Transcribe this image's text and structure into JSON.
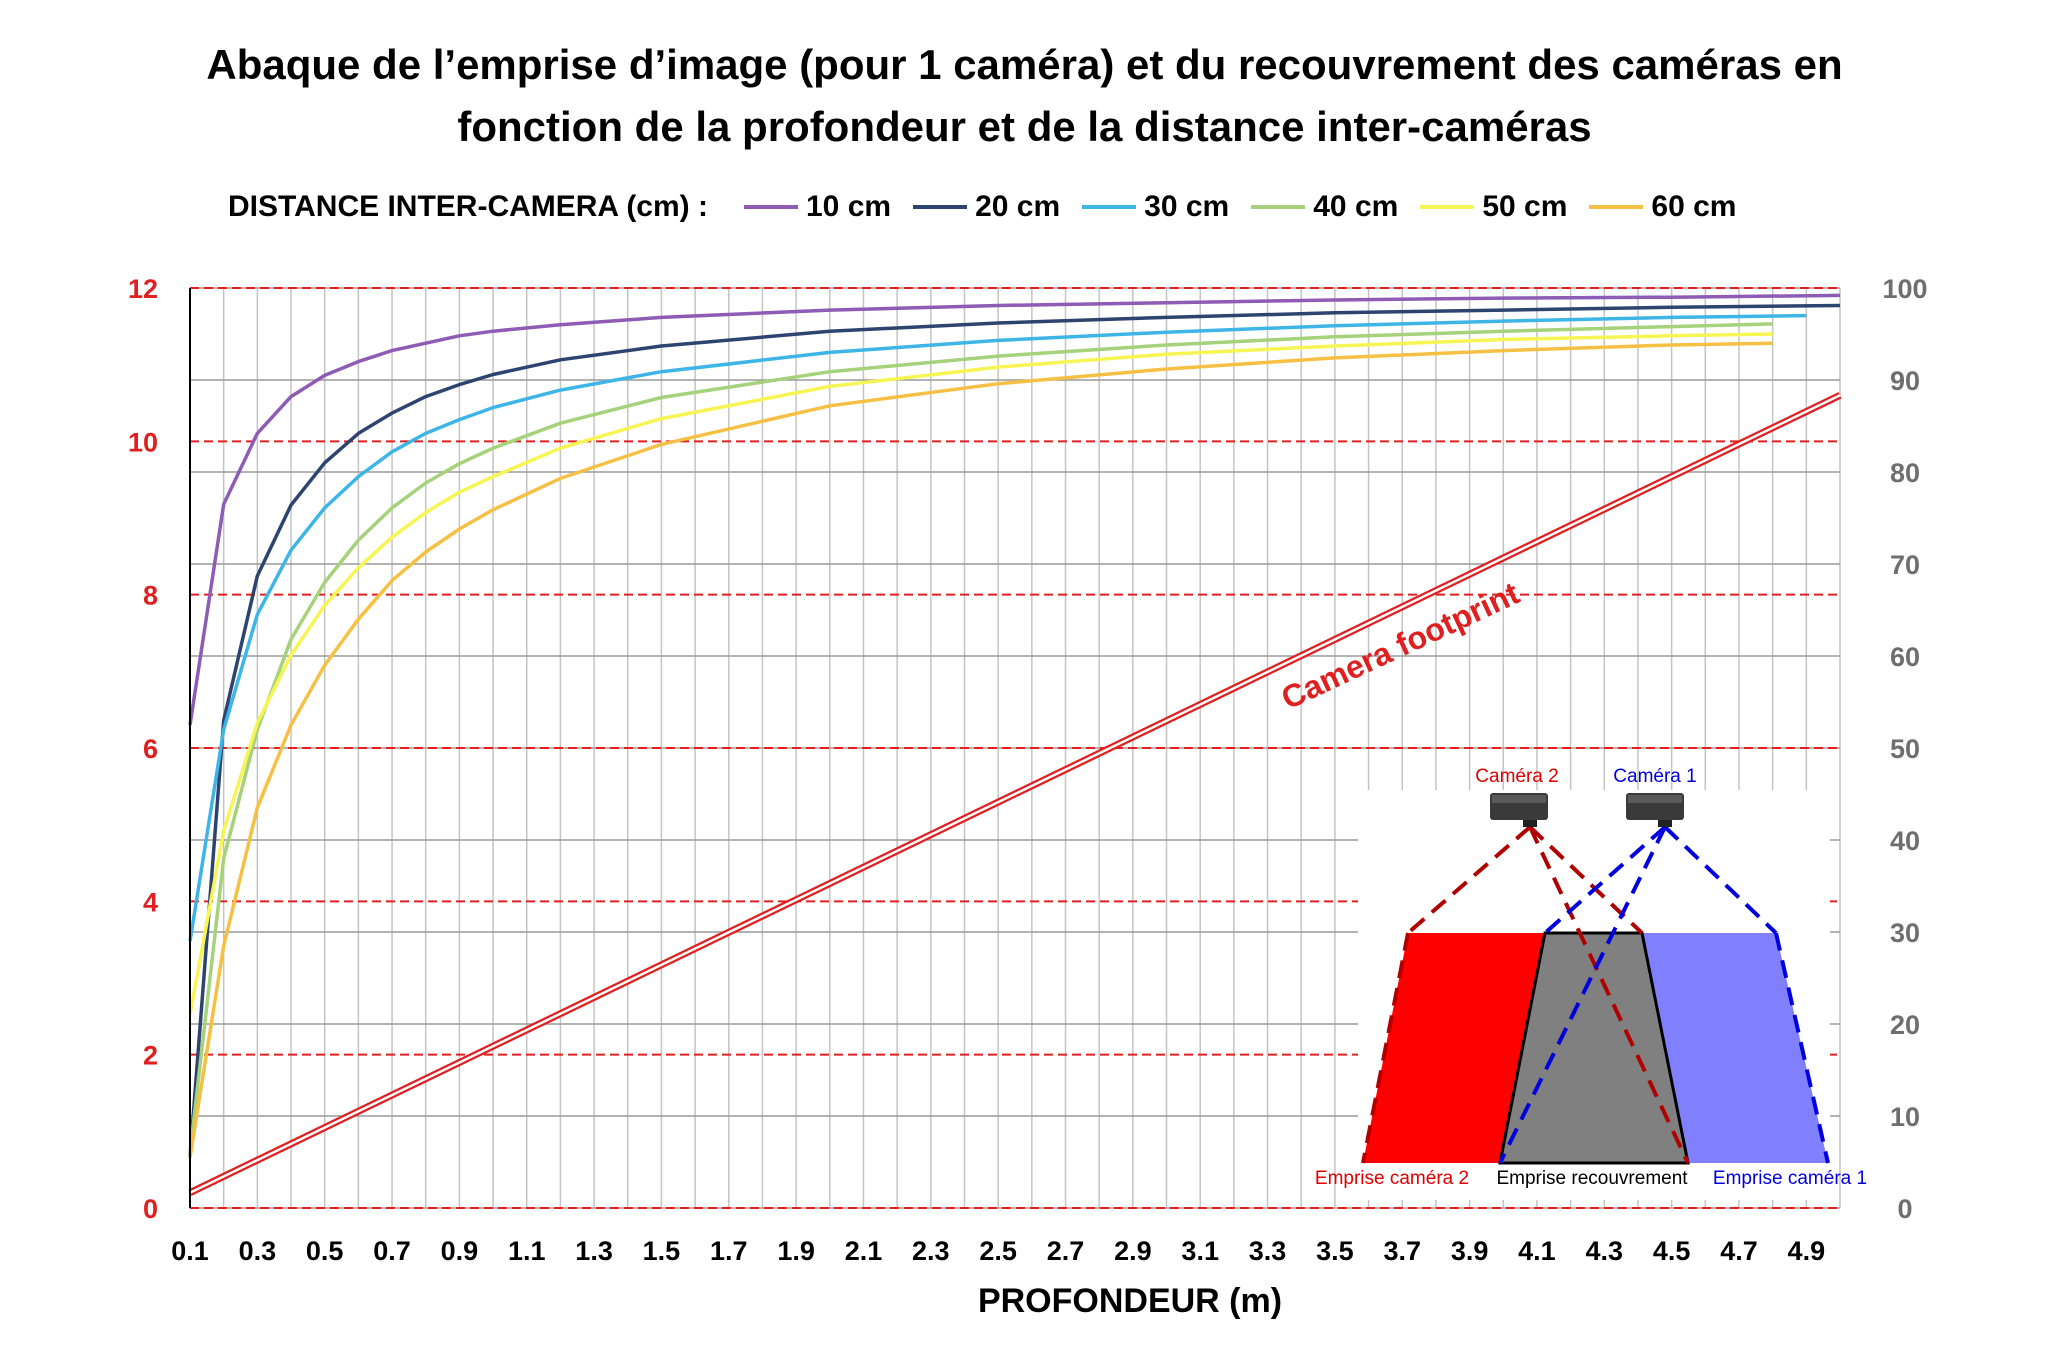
{
  "title_lines": [
    "Abaque de l’emprise d’image (pour 1 caméra) et du recouvrement des caméras en",
    "fonction de la profondeur et de la distance inter-caméras"
  ],
  "legend": {
    "title": "DISTANCE INTER-CAMERA (cm) :",
    "items": [
      {
        "label": "10 cm",
        "color": "#8e5bb5"
      },
      {
        "label": "20 cm",
        "color": "#2e4470"
      },
      {
        "label": "30 cm",
        "color": "#3db5e6"
      },
      {
        "label": "40 cm",
        "color": "#a5d27a"
      },
      {
        "label": "50 cm",
        "color": "#f7f553"
      },
      {
        "label": "60 cm",
        "color": "#f5c044"
      }
    ]
  },
  "chart_data": {
    "type": "line",
    "xlabel": "PROFONDEUR (m)",
    "x_ticks": [
      "0.1",
      "0.3",
      "0.5",
      "0.7",
      "0.9",
      "1.1",
      "1.3",
      "1.5",
      "1.7",
      "1.9",
      "2.1",
      "2.3",
      "2.5",
      "2.7",
      "2.9",
      "3.1",
      "3.3",
      "3.5",
      "3.7",
      "3.9",
      "4.1",
      "4.3",
      "4.5",
      "4.7",
      "4.9"
    ],
    "xlim": [
      0.1,
      5.0
    ],
    "y_left_ticks": [
      "0",
      "2",
      "4",
      "6",
      "8",
      "10",
      "12"
    ],
    "y_left_lim": [
      0,
      12
    ],
    "y_right_ticks": [
      "0",
      "10",
      "20",
      "30",
      "40",
      "50",
      "60",
      "70",
      "80",
      "90",
      "100"
    ],
    "y_right_lim": [
      0,
      100
    ],
    "grid": true,
    "legend_position": "top",
    "series": [
      {
        "name": "10 cm",
        "axis": "right",
        "color": "#8e5bb5",
        "x": [
          0.1,
          0.2,
          0.3,
          0.4,
          0.5,
          0.6,
          0.7,
          0.8,
          0.9,
          1.0,
          1.2,
          1.5,
          2.0,
          2.5,
          3.0,
          3.5,
          4.0,
          4.5,
          5.0
        ],
        "y": [
          52.5,
          76.5,
          84.2,
          88.2,
          90.5,
          92.0,
          93.2,
          94.0,
          94.8,
          95.3,
          96.0,
          96.8,
          97.6,
          98.1,
          98.4,
          98.7,
          98.9,
          99.0,
          99.2
        ]
      },
      {
        "name": "20 cm",
        "axis": "right",
        "color": "#2e4470",
        "x": [
          0.1,
          0.2,
          0.3,
          0.4,
          0.5,
          0.6,
          0.7,
          0.8,
          0.9,
          1.0,
          1.2,
          1.5,
          2.0,
          2.5,
          3.0,
          3.5,
          4.0,
          4.5,
          5.0
        ],
        "y": [
          5.5,
          53.0,
          68.7,
          76.4,
          81.0,
          84.2,
          86.4,
          88.2,
          89.5,
          90.6,
          92.2,
          93.7,
          95.3,
          96.2,
          96.8,
          97.3,
          97.6,
          97.9,
          98.1
        ]
      },
      {
        "name": "30 cm",
        "axis": "right",
        "color": "#3db5e6",
        "x": [
          0.1,
          0.2,
          0.3,
          0.4,
          0.5,
          0.6,
          0.7,
          0.8,
          0.9,
          1.0,
          1.2,
          1.5,
          2.0,
          2.5,
          3.0,
          3.5,
          4.0,
          4.5,
          4.9
        ],
        "y": [
          29.0,
          52.0,
          64.5,
          71.5,
          76.1,
          79.5,
          82.2,
          84.2,
          85.7,
          87.0,
          88.9,
          90.9,
          93.0,
          94.3,
          95.2,
          95.9,
          96.4,
          96.8,
          97.0
        ]
      },
      {
        "name": "40 cm",
        "axis": "right",
        "color": "#a5d27a",
        "x": [
          0.1,
          0.2,
          0.3,
          0.4,
          0.5,
          0.6,
          0.7,
          0.8,
          0.9,
          1.0,
          1.2,
          1.5,
          2.0,
          2.5,
          3.0,
          3.5,
          4.0,
          4.5,
          4.8
        ],
        "y": [
          6.0,
          38.0,
          52.0,
          61.8,
          68.0,
          72.6,
          76.1,
          78.8,
          80.9,
          82.6,
          85.3,
          88.1,
          90.9,
          92.6,
          93.8,
          94.7,
          95.3,
          95.8,
          96.1
        ]
      },
      {
        "name": "50 cm",
        "axis": "right",
        "color": "#f7f553",
        "x": [
          0.1,
          0.2,
          0.3,
          0.4,
          0.5,
          0.6,
          0.7,
          0.8,
          0.9,
          1.0,
          1.2,
          1.5,
          2.0,
          2.5,
          3.0,
          3.5,
          4.0,
          4.5,
          4.8
        ],
        "y": [
          21.0,
          41.0,
          52.7,
          60.1,
          65.5,
          69.6,
          72.9,
          75.6,
          77.8,
          79.5,
          82.6,
          85.8,
          89.3,
          91.4,
          92.8,
          93.7,
          94.4,
          94.8,
          95.0
        ]
      },
      {
        "name": "60 cm",
        "axis": "right",
        "color": "#f5c044",
        "x": [
          0.1,
          0.2,
          0.3,
          0.4,
          0.5,
          0.6,
          0.7,
          0.8,
          0.9,
          1.0,
          1.2,
          1.5,
          2.0,
          2.5,
          3.0,
          3.5,
          4.0,
          4.5,
          4.8
        ],
        "y": [
          5.5,
          28.5,
          43.5,
          52.5,
          59.0,
          64.0,
          68.2,
          71.3,
          73.8,
          75.9,
          79.3,
          83.0,
          87.2,
          89.6,
          91.2,
          92.4,
          93.2,
          93.8,
          94.0
        ]
      },
      {
        "name": "Camera footprint",
        "axis": "left",
        "color": "#e02020",
        "x": [
          0.1,
          5.0
        ],
        "y": [
          0.2,
          10.6
        ]
      }
    ],
    "annotations": [
      {
        "text": "Camera footprint",
        "color": "#e02020"
      }
    ]
  },
  "inset": {
    "camera2_label": "Caméra 2",
    "camera1_label": "Caméra 1",
    "footprint2_label": "Emprise caméra 2",
    "overlap_label": "Emprise recouvrement",
    "footprint1_label": "Emprise caméra 1",
    "colors": {
      "camera2": "#ff0000",
      "overlap": "#808080",
      "camera1": "#8080ff",
      "line2": "#b00000",
      "line1": "#0000dd"
    }
  }
}
